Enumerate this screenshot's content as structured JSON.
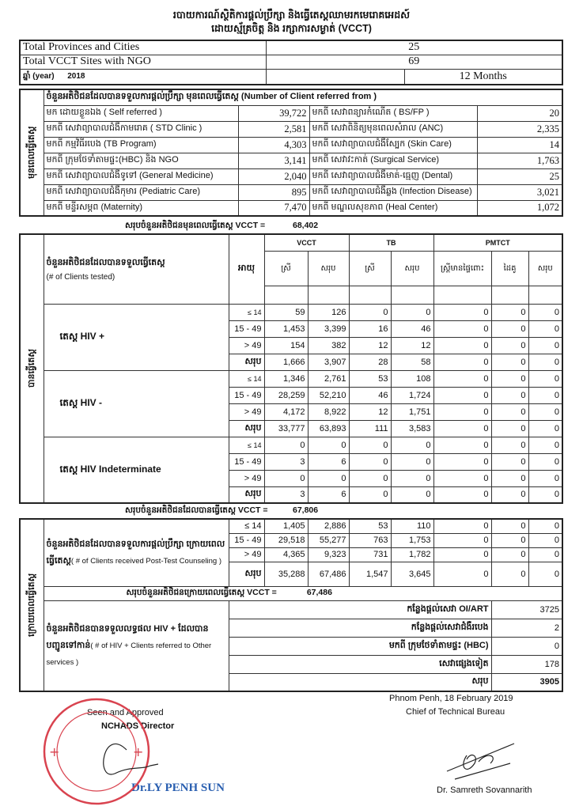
{
  "title": {
    "line1": "របាយការណ៍ស្ថិតិការផ្តល់ប្រឹក្សា និងធ្វើតេស្តឈាមរកមេរោគអេដស៍",
    "line2": "ដោយស្ម័គ្រចិត្ត និង រក្សាការសម្ងាត់ (VCCT)"
  },
  "summary": {
    "provinces_label": "Total Provinces and Cities",
    "provinces_value": "25",
    "sites_label": "Total VCCT Sites with NGO",
    "sites_value": "69",
    "year_label": "ឆ្នាំ (year)",
    "year_value": "2018",
    "period": "12 Months"
  },
  "pre_test": {
    "side_label": "មុនពេលធ្វើតេស្ត",
    "header": "ចំនួនអតិថិជនដែលបានទទួលការផ្តល់ប្រឹក្សា មុនពេលធ្វើតេស្ត (Number of Client referred from )",
    "rows": [
      {
        "l1": "មក ដោយខ្លួនឯង ( Self referred )",
        "v1": "39,722",
        "l2": "មកពី សេវាពន្យារកំណើត ( BS/FP )",
        "v2": "20"
      },
      {
        "l1": "មកពី សេវាព្យាបាលជំងឺកាមរោគ ( STD Clinic )",
        "v1": "2,581",
        "l2": "មកពី សេវាពិនិត្យមុនពេលសំរាល (ANC)",
        "v2": "2,335"
      },
      {
        "l1": "មកពី កម្មវិធីរបេង (TB Program)",
        "v1": "4,303",
        "l2": "មកពី សេវាព្យាបាលជំងឺស្បែក (Skin Care)",
        "v2": "14"
      },
      {
        "l1": "មកពី ក្រុមថែទាំតាមផ្ទះ(HBC) និង NGO",
        "v1": "3,141",
        "l2": "មកពី សេវាវះកាត់ (Surgical Service)",
        "v2": "1,763"
      },
      {
        "l1": "មកពី សេវាព្យាបាលជំងឺទូទៅ (General Medicine)",
        "v1": "2,040",
        "l2": "មកពី សេវាព្យាបាលជំងឺមាត់-ធ្មេញ (Dental)",
        "v2": "25"
      },
      {
        "l1": "មកពី សេវាព្យាបាលជំងឺកុមារ (Pediatric Care)",
        "v1": "895",
        "l2": "មកពី សេវាព្យាបាលជំងឺឆ្លង (Infection Disease)",
        "v2": "3,021"
      },
      {
        "l1": "មកពី មន្ទីរសម្ភព (Maternity)",
        "v1": "7,470",
        "l2": "មកពី មណ្ឌលសុខភាព (Heal Center)",
        "v2": "1,072"
      }
    ],
    "total_label": "សរុបចំនួនអតិថិជនមុនពេលធ្វើតេស្ត VCCT =",
    "total_value": "68,402"
  },
  "testing": {
    "side_label": "បានធ្វើតេស្ត",
    "label": "ចំនួនអតិថិជនដែលបានទទួលធ្វើតេស្ត",
    "label_en": "(# of Clients tested)",
    "age_header": "អាយុ",
    "groups": [
      "VCCT",
      "TB",
      "PMTCT"
    ],
    "subheaders": [
      "ស្រី",
      "សរុប",
      "ស្រី",
      "សរុប",
      "ស្ត្រីមានផ្ទៃពោះ",
      "ដៃគូ",
      "សរុប"
    ],
    "results": [
      {
        "label": "តេស្ត HIV +",
        "rows": [
          {
            "age": "≤ 14",
            "v": [
              "59",
              "126",
              "0",
              "0",
              "0",
              "0",
              "0"
            ]
          },
          {
            "age": "15 - 49",
            "v": [
              "1,453",
              "3,399",
              "16",
              "46",
              "0",
              "0",
              "0"
            ]
          },
          {
            "age": "> 49",
            "v": [
              "154",
              "382",
              "12",
              "12",
              "0",
              "0",
              "0"
            ]
          },
          {
            "age": "សរុប",
            "v": [
              "1,666",
              "3,907",
              "28",
              "58",
              "0",
              "0",
              "0"
            ]
          }
        ]
      },
      {
        "label": "តេស្ត HIV -",
        "rows": [
          {
            "age": "≤ 14",
            "v": [
              "1,346",
              "2,761",
              "53",
              "108",
              "0",
              "0",
              "0"
            ]
          },
          {
            "age": "15 - 49",
            "v": [
              "28,259",
              "52,210",
              "46",
              "1,724",
              "0",
              "0",
              "0"
            ]
          },
          {
            "age": "> 49",
            "v": [
              "4,172",
              "8,922",
              "12",
              "1,751",
              "0",
              "0",
              "0"
            ]
          },
          {
            "age": "សរុប",
            "v": [
              "33,777",
              "63,893",
              "111",
              "3,583",
              "0",
              "0",
              "0"
            ]
          }
        ]
      },
      {
        "label": "តេស្ត HIV Indeterminate",
        "rows": [
          {
            "age": "≤ 14",
            "v": [
              "0",
              "0",
              "0",
              "0",
              "0",
              "0",
              "0"
            ]
          },
          {
            "age": "15 - 49",
            "v": [
              "3",
              "6",
              "0",
              "0",
              "0",
              "0",
              "0"
            ]
          },
          {
            "age": "> 49",
            "v": [
              "0",
              "0",
              "0",
              "0",
              "0",
              "0",
              "0"
            ]
          },
          {
            "age": "សរុប",
            "v": [
              "3",
              "6",
              "0",
              "0",
              "0",
              "0",
              "0"
            ]
          }
        ]
      }
    ],
    "total_label": "សរុបចំនួនអតិថិជនដែលបានធ្វើតេស្ត VCCT =",
    "total_value": "67,806"
  },
  "post_test": {
    "side_label": "ក្រោយពេលធ្វើតេស្ត",
    "label": "ចំនួនអតិថិជនដែលបានទទួលការផ្តល់ប្រឹក្សា ក្រោយពេលធ្វើតេស្ត",
    "label_en": "( # of Clients received Post-Test Counseling )",
    "rows": [
      {
        "age": "≤ 14",
        "v": [
          "1,405",
          "2,886",
          "53",
          "110",
          "0",
          "0",
          "0"
        ]
      },
      {
        "age": "15 - 49",
        "v": [
          "29,518",
          "55,277",
          "763",
          "1,753",
          "0",
          "0",
          "0"
        ]
      },
      {
        "age": "> 49",
        "v": [
          "4,365",
          "9,323",
          "731",
          "1,782",
          "0",
          "0",
          "0"
        ]
      },
      {
        "age": "សរុប",
        "v": [
          "35,288",
          "67,486",
          "1,547",
          "3,645",
          "0",
          "0",
          "0"
        ]
      }
    ],
    "total_label": "សរុបចំនួនអតិថិជនក្រោយពេលធ្វើតេស្ត VCCT =",
    "total_value": "67,486",
    "referral_label": "ចំនួនអតិថិជនបានទទួលលទ្ធផល HIV + ដែលបានបញ្ជូនទៅកាន់",
    "referral_label_en": "( # of HIV + Clients referred to Other services )",
    "referrals": [
      {
        "label": "កន្លែងផ្តល់សេវា OI/ART",
        "value": "3725"
      },
      {
        "label": "កន្លែងផ្តល់សេវាជំងឺរបេង",
        "value": "2"
      },
      {
        "label": "មកពី ក្រុមថែទាំតាមផ្ទះ (HBC)",
        "value": "0"
      },
      {
        "label": "សេវាផ្សេងទៀត",
        "value": "178"
      },
      {
        "label": "សរុប",
        "value": "3905"
      }
    ]
  },
  "footer": {
    "approved": "Seen and Approved",
    "director_title": "NCHADS Director",
    "director_name": "Dr.LY PENH SUN",
    "place_date": "Phnom Penh, 18  February  2019",
    "chief_title": "Chief of Technical Bureau",
    "chief_name": "Dr. Samreth Sovannarith",
    "stamp_color": "#d9434f",
    "name_color": "#2a5fb0"
  }
}
